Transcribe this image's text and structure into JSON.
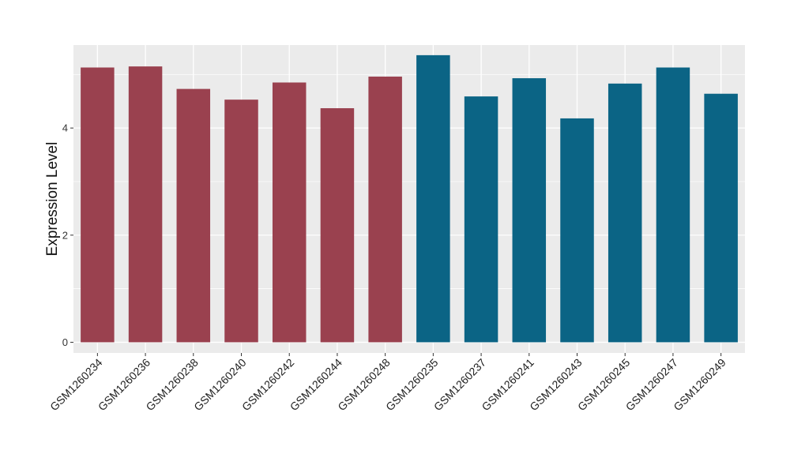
{
  "chart_data": {
    "type": "bar",
    "title": "",
    "xlabel": "",
    "ylabel": "Expression Level",
    "ylim": [
      -0.2,
      5.55
    ],
    "yticks": [
      0,
      2,
      4
    ],
    "grid": true,
    "legend": "none",
    "colors": {
      "group_a": "#9a414f",
      "group_b": "#0b6485",
      "panel": "#ebebeb",
      "gridline": "#ffffff"
    },
    "categories": [
      "GSM1260234",
      "GSM1260236",
      "GSM1260238",
      "GSM1260240",
      "GSM1260242",
      "GSM1260244",
      "GSM1260248",
      "GSM1260235",
      "GSM1260237",
      "GSM1260241",
      "GSM1260243",
      "GSM1260245",
      "GSM1260247",
      "GSM1260249"
    ],
    "values": [
      5.13,
      5.15,
      4.73,
      4.53,
      4.85,
      4.37,
      4.96,
      5.36,
      4.59,
      4.93,
      4.18,
      4.83,
      5.13,
      4.64
    ],
    "groups": [
      "a",
      "a",
      "a",
      "a",
      "a",
      "a",
      "a",
      "b",
      "b",
      "b",
      "b",
      "b",
      "b",
      "b"
    ]
  }
}
